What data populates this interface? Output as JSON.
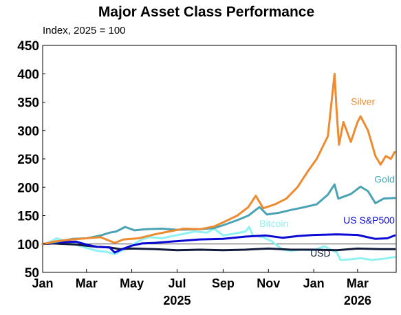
{
  "chart_data": {
    "type": "line",
    "title": "Major Asset Class Performance",
    "subtitle": "Index, 2025 = 100",
    "xlabel": "",
    "ylabel": "",
    "ylim": [
      50,
      450
    ],
    "yticks": [
      "450",
      "400",
      "350",
      "300",
      "250",
      "200",
      "150",
      "100",
      "50"
    ],
    "xticks": [
      {
        "label": "Jan",
        "date": "2025-01-01"
      },
      {
        "label": "Mar",
        "date": "2025-03-01"
      },
      {
        "label": "May",
        "date": "2025-05-01"
      },
      {
        "label": "Jul",
        "date": "2025-07-01"
      },
      {
        "label": "Sep",
        "date": "2025-09-01"
      },
      {
        "label": "Nov",
        "date": "2025-11-01"
      },
      {
        "label": "Jan",
        "date": "2026-01-01"
      },
      {
        "label": "Mar",
        "date": "2026-03-01"
      }
    ],
    "year_labels": [
      {
        "label": "2025",
        "date": "2025-07-01"
      },
      {
        "label": "2026",
        "date": "2026-03-01"
      }
    ],
    "x_range": [
      "2025-01-01",
      "2026-04-22"
    ],
    "reference_line": 100,
    "grid": false,
    "legend": "none",
    "series": [
      {
        "name": "Bitcoin",
        "color": "#8ff2f2",
        "points": [
          [
            "2025-01-01",
            100
          ],
          [
            "2025-01-10",
            103
          ],
          [
            "2025-01-20",
            110
          ],
          [
            "2025-02-01",
            105
          ],
          [
            "2025-02-15",
            99
          ],
          [
            "2025-03-01",
            93
          ],
          [
            "2025-03-15",
            88
          ],
          [
            "2025-03-28",
            86
          ],
          [
            "2025-04-08",
            82
          ],
          [
            "2025-04-20",
            90
          ],
          [
            "2025-05-01",
            98
          ],
          [
            "2025-05-15",
            108
          ],
          [
            "2025-05-25",
            112
          ],
          [
            "2025-06-10",
            110
          ],
          [
            "2025-06-25",
            114
          ],
          [
            "2025-07-10",
            118
          ],
          [
            "2025-07-25",
            122
          ],
          [
            "2025-08-10",
            120
          ],
          [
            "2025-08-20",
            127
          ],
          [
            "2025-09-01",
            115
          ],
          [
            "2025-09-15",
            118
          ],
          [
            "2025-10-01",
            122
          ],
          [
            "2025-10-06",
            130
          ],
          [
            "2025-10-11",
            115
          ],
          [
            "2025-10-25",
            112
          ],
          [
            "2025-11-05",
            105
          ],
          [
            "2025-11-20",
            90
          ],
          [
            "2025-12-01",
            88
          ],
          [
            "2025-12-15",
            90
          ],
          [
            "2026-01-01",
            89
          ],
          [
            "2026-01-15",
            96
          ],
          [
            "2026-02-01",
            85
          ],
          [
            "2026-02-06",
            72
          ],
          [
            "2026-02-20",
            73
          ],
          [
            "2026-03-05",
            75
          ],
          [
            "2026-03-20",
            72
          ],
          [
            "2026-04-05",
            74
          ],
          [
            "2026-04-20",
            77
          ]
        ],
        "label": "Bitcoin"
      },
      {
        "name": "USD",
        "color": "#111b3c",
        "points": [
          [
            "2025-01-01",
            100
          ],
          [
            "2025-01-15",
            101
          ],
          [
            "2025-02-01",
            100
          ],
          [
            "2025-02-15",
            99
          ],
          [
            "2025-03-01",
            97
          ],
          [
            "2025-03-15",
            95
          ],
          [
            "2025-04-01",
            94
          ],
          [
            "2025-04-15",
            91
          ],
          [
            "2025-05-01",
            92
          ],
          [
            "2025-06-01",
            91
          ],
          [
            "2025-07-01",
            89
          ],
          [
            "2025-08-01",
            90
          ],
          [
            "2025-09-01",
            89
          ],
          [
            "2025-10-01",
            90
          ],
          [
            "2025-11-01",
            92
          ],
          [
            "2025-12-01",
            90
          ],
          [
            "2026-01-01",
            90
          ],
          [
            "2026-02-01",
            89
          ],
          [
            "2026-03-01",
            92
          ],
          [
            "2026-04-01",
            91
          ],
          [
            "2026-04-20",
            91
          ]
        ],
        "label": "USD"
      },
      {
        "name": "US S&P500",
        "color": "#0a0ad2",
        "points": [
          [
            "2025-01-01",
            100
          ],
          [
            "2025-01-20",
            103
          ],
          [
            "2025-02-15",
            104
          ],
          [
            "2025-03-01",
            99
          ],
          [
            "2025-03-15",
            95
          ],
          [
            "2025-04-01",
            94
          ],
          [
            "2025-04-08",
            85
          ],
          [
            "2025-04-20",
            92
          ],
          [
            "2025-05-01",
            97
          ],
          [
            "2025-05-15",
            101
          ],
          [
            "2025-06-01",
            102
          ],
          [
            "2025-07-01",
            105
          ],
          [
            "2025-08-01",
            108
          ],
          [
            "2025-09-01",
            109
          ],
          [
            "2025-10-01",
            113
          ],
          [
            "2025-10-28",
            115
          ],
          [
            "2025-11-20",
            111
          ],
          [
            "2025-12-10",
            114
          ],
          [
            "2026-01-01",
            116
          ],
          [
            "2026-02-01",
            117
          ],
          [
            "2026-03-01",
            116
          ],
          [
            "2026-03-25",
            109
          ],
          [
            "2026-04-10",
            110
          ],
          [
            "2026-04-20",
            115
          ]
        ],
        "label": "US S&P500"
      },
      {
        "name": "Gold",
        "color": "#4aa3b5",
        "points": [
          [
            "2025-01-01",
            100
          ],
          [
            "2025-01-20",
            104
          ],
          [
            "2025-02-10",
            109
          ],
          [
            "2025-03-01",
            110
          ],
          [
            "2025-03-20",
            115
          ],
          [
            "2025-04-01",
            120
          ],
          [
            "2025-04-10",
            122
          ],
          [
            "2025-04-22",
            130
          ],
          [
            "2025-05-05",
            124
          ],
          [
            "2025-05-20",
            126
          ],
          [
            "2025-06-10",
            127
          ],
          [
            "2025-07-01",
            125
          ],
          [
            "2025-08-01",
            126
          ],
          [
            "2025-08-20",
            128
          ],
          [
            "2025-09-01",
            133
          ],
          [
            "2025-09-20",
            142
          ],
          [
            "2025-10-05",
            150
          ],
          [
            "2025-10-20",
            165
          ],
          [
            "2025-10-30",
            152
          ],
          [
            "2025-11-15",
            155
          ],
          [
            "2025-12-01",
            160
          ],
          [
            "2025-12-20",
            165
          ],
          [
            "2026-01-05",
            170
          ],
          [
            "2026-01-20",
            187
          ],
          [
            "2026-01-29",
            205
          ],
          [
            "2026-02-03",
            180
          ],
          [
            "2026-02-20",
            188
          ],
          [
            "2026-03-05",
            201
          ],
          [
            "2026-03-15",
            193
          ],
          [
            "2026-03-25",
            172
          ],
          [
            "2026-04-05",
            180
          ],
          [
            "2026-04-20",
            181
          ]
        ],
        "label": "Gold"
      },
      {
        "name": "Silver",
        "color": "#ee8a2f",
        "points": [
          [
            "2025-01-01",
            100
          ],
          [
            "2025-01-20",
            105
          ],
          [
            "2025-02-10",
            108
          ],
          [
            "2025-03-01",
            110
          ],
          [
            "2025-03-20",
            112
          ],
          [
            "2025-04-08",
            102
          ],
          [
            "2025-04-20",
            108
          ],
          [
            "2025-05-10",
            110
          ],
          [
            "2025-06-01",
            117
          ],
          [
            "2025-06-20",
            122
          ],
          [
            "2025-07-10",
            127
          ],
          [
            "2025-08-01",
            126
          ],
          [
            "2025-08-20",
            131
          ],
          [
            "2025-09-01",
            138
          ],
          [
            "2025-09-20",
            150
          ],
          [
            "2025-10-05",
            165
          ],
          [
            "2025-10-15",
            185
          ],
          [
            "2025-10-25",
            163
          ],
          [
            "2025-11-10",
            170
          ],
          [
            "2025-11-25",
            180
          ],
          [
            "2025-12-10",
            200
          ],
          [
            "2025-12-25",
            230
          ],
          [
            "2026-01-05",
            250
          ],
          [
            "2026-01-20",
            290
          ],
          [
            "2026-01-29",
            400
          ],
          [
            "2026-02-01",
            330
          ],
          [
            "2026-02-04",
            275
          ],
          [
            "2026-02-10",
            315
          ],
          [
            "2026-02-20",
            280
          ],
          [
            "2026-03-01",
            315
          ],
          [
            "2026-03-05",
            325
          ],
          [
            "2026-03-15",
            300
          ],
          [
            "2026-03-25",
            255
          ],
          [
            "2026-04-01",
            240
          ],
          [
            "2026-04-08",
            255
          ],
          [
            "2026-04-15",
            250
          ],
          [
            "2026-04-20",
            262
          ]
        ],
        "label": "Silver"
      }
    ]
  }
}
